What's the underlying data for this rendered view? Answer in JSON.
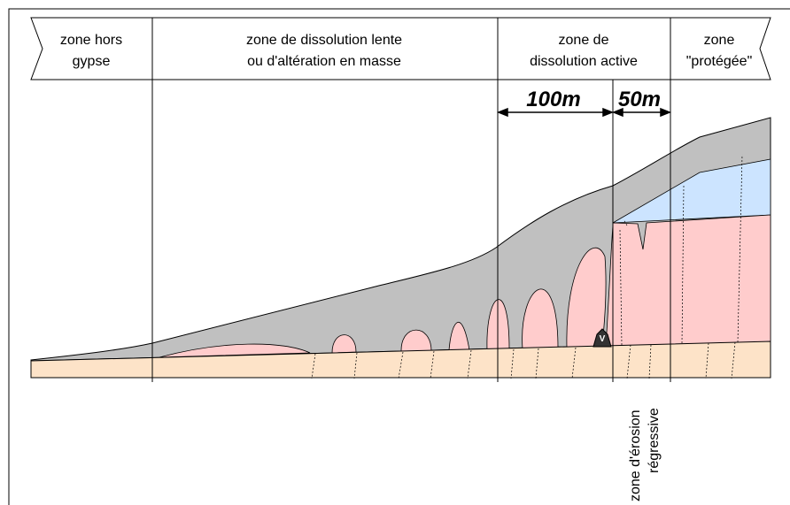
{
  "zones": [
    {
      "lines": [
        "zone hors",
        "gypse"
      ]
    },
    {
      "lines": [
        "zone de dissolution lente",
        "ou d'altération en masse"
      ]
    },
    {
      "lines": [
        "zone de",
        "dissolution active"
      ]
    },
    {
      "lines": [
        "zone",
        "\"protégée\""
      ]
    }
  ],
  "dimensions": [
    "100m",
    "50m"
  ],
  "erosion_label": [
    "zone d'érosion",
    "régressive"
  ],
  "marker": "V"
}
